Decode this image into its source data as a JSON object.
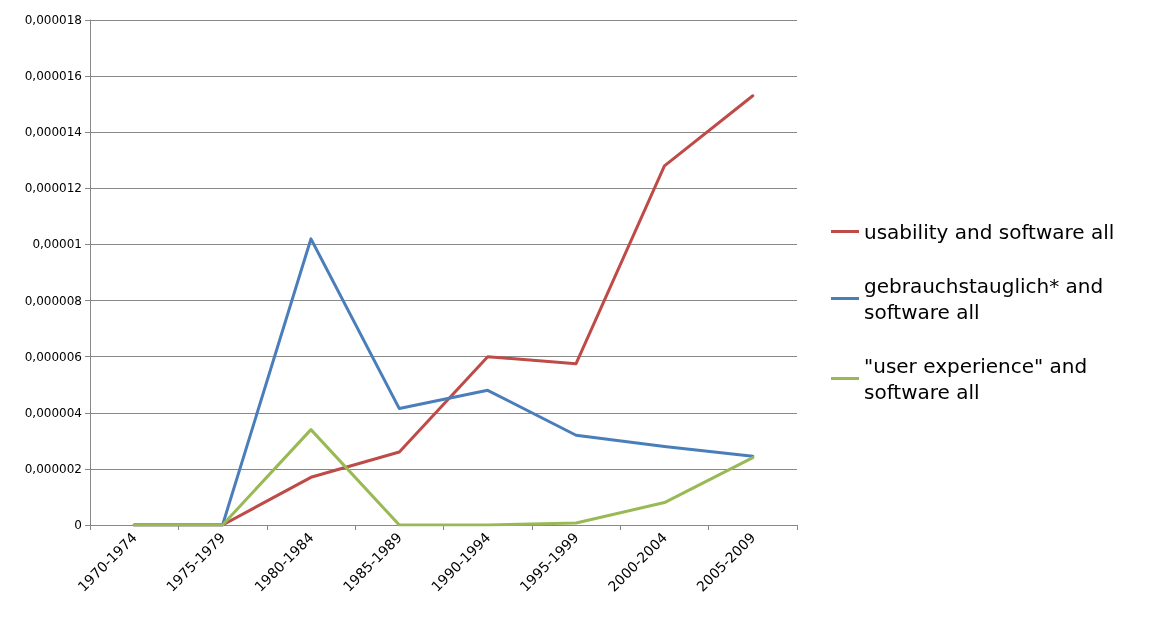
{
  "chart_data": {
    "type": "line",
    "categories": [
      "1970-1974",
      "1975-1979",
      "1980-1984",
      "1985-1989",
      "1990-1994",
      "1995-1999",
      "2000-2004",
      "2005-2009"
    ],
    "series": [
      {
        "name": "usability and software all",
        "color": "#be4b48",
        "values": [
          0,
          0,
          1.7e-06,
          2.6e-06,
          6e-06,
          5.75e-06,
          1.28e-05,
          1.53e-05
        ]
      },
      {
        "name": "gebrauchstauglich* and software all",
        "color": "#4a7ebb",
        "values": [
          0,
          0,
          1.02e-05,
          4.15e-06,
          4.8e-06,
          3.2e-06,
          2.8e-06,
          2.45e-06
        ]
      },
      {
        "name": "\"user experience\" and software all",
        "color": "#98b954",
        "values": [
          0,
          0,
          3.4e-06,
          0,
          0,
          7e-08,
          8e-07,
          2.4e-06
        ]
      }
    ],
    "ylim": [
      0,
      1.8e-05
    ],
    "yticks": [
      0,
      {
        "value": 2e-06,
        "label": "0,000002"
      },
      {
        "value": 4e-06,
        "label": "0,000004"
      },
      {
        "value": 6e-06,
        "label": "0,000006"
      },
      {
        "value": 8e-06,
        "label": "0,000008"
      },
      {
        "value": 1e-05,
        "label": "0,00001"
      },
      {
        "value": 1.2e-05,
        "label": "0,000012"
      },
      {
        "value": 1.4e-05,
        "label": "0,000014"
      },
      {
        "value": 1.6e-05,
        "label": "0,000016"
      },
      {
        "value": 1.8e-05,
        "label": "0,000018"
      }
    ],
    "grid": "y",
    "legend": "right",
    "marker": "none",
    "line_style": "solid"
  }
}
